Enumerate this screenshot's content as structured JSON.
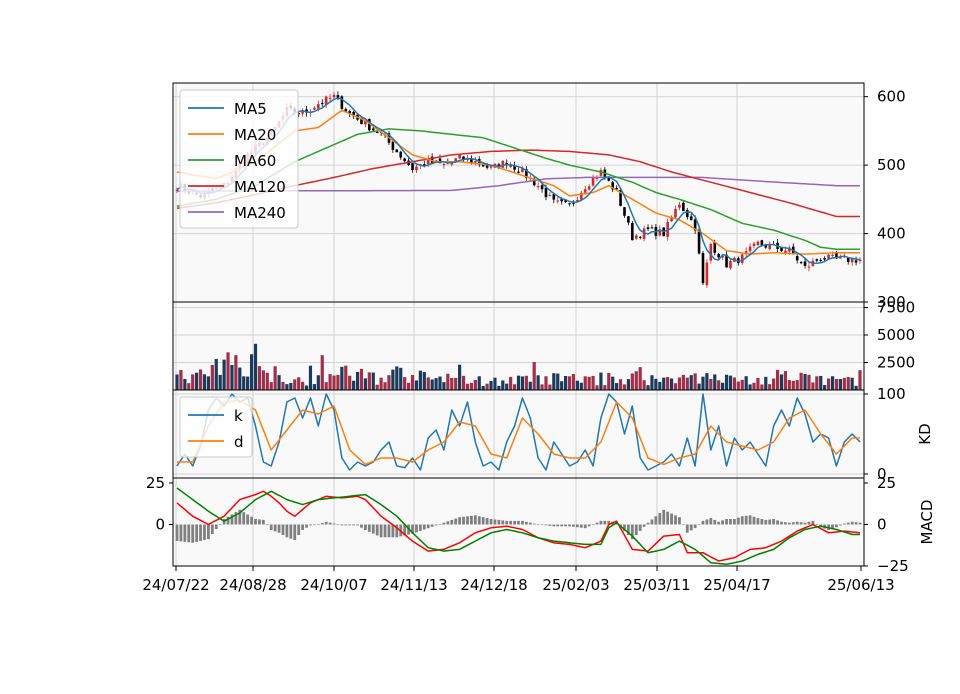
{
  "chart_data": {
    "type": "candlestick",
    "x_tick_labels": [
      "24/07/22",
      "24/08/28",
      "24/10/07",
      "24/11/13",
      "24/12/18",
      "25/02/03",
      "25/03/11",
      "25/04/17",
      "25/06/13"
    ],
    "colors": {
      "ma5": "#1f77b4",
      "ma20": "#ff7f0e",
      "ma60": "#2ca02c",
      "ma120": "#d62728",
      "ma240": "#9467bd",
      "up": "#d62728",
      "down": "#000000",
      "vol_up": "#a0304a",
      "vol_down": "#1b3a5c",
      "macd_line": "#ff0000",
      "signal_line": "#008000",
      "histogram": "#808080",
      "k": "#1f77b4",
      "d": "#ff7f0e",
      "panel_bg": "#f9f9f9",
      "grid": "#d3d3d3"
    },
    "price_panel": {
      "ylim": [
        300,
        620
      ],
      "y_ticks": [
        "600",
        "500",
        "400",
        "300"
      ],
      "legend": [
        "MA5",
        "MA20",
        "MA60",
        "MA120",
        "MA240"
      ],
      "legend_position": "upper-left",
      "close_anchors": [
        [
          0,
          470
        ],
        [
          6,
          455
        ],
        [
          12,
          470
        ],
        [
          18,
          515
        ],
        [
          24,
          545
        ],
        [
          28,
          580
        ],
        [
          32,
          575
        ],
        [
          36,
          590
        ],
        [
          40,
          600
        ],
        [
          44,
          575
        ],
        [
          48,
          560
        ],
        [
          52,
          545
        ],
        [
          56,
          520
        ],
        [
          60,
          495
        ],
        [
          64,
          505
        ],
        [
          68,
          500
        ],
        [
          72,
          510
        ],
        [
          76,
          505
        ],
        [
          80,
          495
        ],
        [
          84,
          505
        ],
        [
          88,
          490
        ],
        [
          92,
          470
        ],
        [
          96,
          445
        ],
        [
          100,
          440
        ],
        [
          104,
          470
        ],
        [
          108,
          490
        ],
        [
          112,
          460
        ],
        [
          116,
          395
        ],
        [
          120,
          405
        ],
        [
          124,
          400
        ],
        [
          128,
          445
        ],
        [
          132,
          410
        ],
        [
          134,
          325
        ],
        [
          136,
          385
        ],
        [
          140,
          355
        ],
        [
          144,
          365
        ],
        [
          148,
          385
        ],
        [
          152,
          380
        ],
        [
          156,
          375
        ],
        [
          160,
          350
        ],
        [
          164,
          365
        ],
        [
          168,
          362
        ]
      ],
      "ma20_anchors": [
        [
          0,
          490
        ],
        [
          10,
          480
        ],
        [
          20,
          505
        ],
        [
          30,
          550
        ],
        [
          36,
          555
        ],
        [
          42,
          580
        ],
        [
          48,
          565
        ],
        [
          54,
          540
        ],
        [
          60,
          515
        ],
        [
          66,
          505
        ],
        [
          72,
          505
        ],
        [
          80,
          500
        ],
        [
          88,
          485
        ],
        [
          96,
          470
        ],
        [
          100,
          455
        ],
        [
          106,
          460
        ],
        [
          110,
          470
        ],
        [
          116,
          450
        ],
        [
          122,
          430
        ],
        [
          128,
          420
        ],
        [
          134,
          400
        ],
        [
          140,
          375
        ],
        [
          146,
          370
        ],
        [
          152,
          372
        ],
        [
          160,
          370
        ],
        [
          168,
          372
        ]
      ],
      "ma60_anchors": [
        [
          0,
          440
        ],
        [
          10,
          450
        ],
        [
          20,
          470
        ],
        [
          30,
          505
        ],
        [
          38,
          525
        ],
        [
          46,
          545
        ],
        [
          54,
          553
        ],
        [
          62,
          550
        ],
        [
          70,
          545
        ],
        [
          78,
          540
        ],
        [
          86,
          525
        ],
        [
          94,
          510
        ],
        [
          100,
          500
        ],
        [
          108,
          490
        ],
        [
          116,
          475
        ],
        [
          122,
          460
        ],
        [
          128,
          450
        ],
        [
          136,
          435
        ],
        [
          144,
          415
        ],
        [
          152,
          405
        ],
        [
          160,
          390
        ],
        [
          164,
          380
        ],
        [
          168,
          377
        ]
      ],
      "ma120_anchors": [
        [
          0,
          437
        ],
        [
          10,
          445
        ],
        [
          20,
          457
        ],
        [
          30,
          470
        ],
        [
          40,
          482
        ],
        [
          50,
          495
        ],
        [
          60,
          505
        ],
        [
          70,
          515
        ],
        [
          80,
          520
        ],
        [
          90,
          522
        ],
        [
          100,
          520
        ],
        [
          110,
          515
        ],
        [
          118,
          505
        ],
        [
          126,
          490
        ],
        [
          136,
          475
        ],
        [
          146,
          460
        ],
        [
          156,
          445
        ],
        [
          168,
          425
        ]
      ],
      "ma240_anchors": [
        [
          0,
          462
        ],
        [
          70,
          463
        ],
        [
          82,
          470
        ],
        [
          94,
          480
        ],
        [
          104,
          482
        ],
        [
          134,
          482
        ],
        [
          150,
          476
        ],
        [
          168,
          470
        ]
      ]
    },
    "volume_panel": {
      "ylim": [
        0,
        8000
      ],
      "y_ticks": [
        "7500",
        "5000",
        "2500"
      ],
      "level_anchors": [
        [
          0,
          1000
        ],
        [
          8,
          1400
        ],
        [
          12,
          2200
        ],
        [
          20,
          3200
        ],
        [
          22,
          2000
        ],
        [
          30,
          900
        ],
        [
          36,
          1100
        ],
        [
          44,
          1500
        ],
        [
          52,
          1100
        ],
        [
          56,
          1500
        ],
        [
          64,
          1000
        ],
        [
          72,
          900
        ],
        [
          80,
          800
        ],
        [
          90,
          900
        ],
        [
          96,
          1000
        ],
        [
          110,
          1000
        ],
        [
          116,
          1200
        ],
        [
          124,
          900
        ],
        [
          132,
          1300
        ],
        [
          136,
          1000
        ],
        [
          148,
          900
        ],
        [
          160,
          1000
        ],
        [
          168,
          900
        ]
      ]
    },
    "kd_panel": {
      "ylim": [
        0,
        100
      ],
      "y_ticks": [
        "100",
        "0"
      ],
      "ylabel": "KD",
      "legend": [
        "k",
        "d"
      ],
      "legend_position": "upper-left",
      "k_anchors": [
        [
          0,
          10
        ],
        [
          2,
          25
        ],
        [
          4,
          10
        ],
        [
          6,
          35
        ],
        [
          8,
          80
        ],
        [
          10,
          95
        ],
        [
          12,
          85
        ],
        [
          14,
          100
        ],
        [
          16,
          90
        ],
        [
          18,
          95
        ],
        [
          20,
          60
        ],
        [
          22,
          15
        ],
        [
          24,
          10
        ],
        [
          26,
          40
        ],
        [
          28,
          90
        ],
        [
          30,
          95
        ],
        [
          32,
          70
        ],
        [
          34,
          95
        ],
        [
          36,
          60
        ],
        [
          38,
          100
        ],
        [
          40,
          80
        ],
        [
          42,
          20
        ],
        [
          44,
          5
        ],
        [
          46,
          15
        ],
        [
          48,
          10
        ],
        [
          50,
          15
        ],
        [
          52,
          30
        ],
        [
          54,
          40
        ],
        [
          56,
          10
        ],
        [
          58,
          8
        ],
        [
          60,
          20
        ],
        [
          62,
          5
        ],
        [
          64,
          45
        ],
        [
          66,
          55
        ],
        [
          68,
          30
        ],
        [
          70,
          80
        ],
        [
          72,
          60
        ],
        [
          74,
          90
        ],
        [
          76,
          40
        ],
        [
          78,
          10
        ],
        [
          80,
          15
        ],
        [
          82,
          5
        ],
        [
          84,
          40
        ],
        [
          86,
          60
        ],
        [
          88,
          95
        ],
        [
          90,
          70
        ],
        [
          92,
          20
        ],
        [
          94,
          5
        ],
        [
          96,
          40
        ],
        [
          98,
          25
        ],
        [
          100,
          10
        ],
        [
          102,
          15
        ],
        [
          104,
          30
        ],
        [
          106,
          10
        ],
        [
          108,
          70
        ],
        [
          110,
          100
        ],
        [
          112,
          90
        ],
        [
          114,
          50
        ],
        [
          116,
          85
        ],
        [
          118,
          20
        ],
        [
          120,
          5
        ],
        [
          122,
          10
        ],
        [
          124,
          15
        ],
        [
          126,
          25
        ],
        [
          128,
          10
        ],
        [
          130,
          45
        ],
        [
          132,
          10
        ],
        [
          134,
          100
        ],
        [
          136,
          30
        ],
        [
          138,
          60
        ],
        [
          140,
          10
        ],
        [
          142,
          45
        ],
        [
          144,
          30
        ],
        [
          146,
          40
        ],
        [
          148,
          25
        ],
        [
          150,
          10
        ],
        [
          152,
          60
        ],
        [
          154,
          80
        ],
        [
          156,
          60
        ],
        [
          158,
          95
        ],
        [
          160,
          75
        ],
        [
          162,
          40
        ],
        [
          164,
          50
        ],
        [
          166,
          45
        ],
        [
          168,
          10
        ],
        [
          170,
          40
        ],
        [
          172,
          50
        ],
        [
          174,
          40
        ]
      ],
      "d_anchors": [
        [
          0,
          15
        ],
        [
          4,
          15
        ],
        [
          8,
          60
        ],
        [
          12,
          90
        ],
        [
          16,
          92
        ],
        [
          20,
          80
        ],
        [
          24,
          30
        ],
        [
          28,
          55
        ],
        [
          32,
          80
        ],
        [
          36,
          75
        ],
        [
          40,
          85
        ],
        [
          44,
          30
        ],
        [
          48,
          12
        ],
        [
          52,
          20
        ],
        [
          56,
          20
        ],
        [
          60,
          15
        ],
        [
          64,
          30
        ],
        [
          68,
          40
        ],
        [
          72,
          65
        ],
        [
          76,
          60
        ],
        [
          80,
          25
        ],
        [
          84,
          20
        ],
        [
          88,
          70
        ],
        [
          92,
          50
        ],
        [
          96,
          25
        ],
        [
          100,
          20
        ],
        [
          104,
          20
        ],
        [
          108,
          40
        ],
        [
          112,
          90
        ],
        [
          116,
          70
        ],
        [
          120,
          20
        ],
        [
          124,
          12
        ],
        [
          128,
          20
        ],
        [
          132,
          25
        ],
        [
          136,
          60
        ],
        [
          140,
          40
        ],
        [
          144,
          35
        ],
        [
          148,
          30
        ],
        [
          152,
          40
        ],
        [
          156,
          70
        ],
        [
          160,
          80
        ],
        [
          164,
          50
        ],
        [
          168,
          25
        ],
        [
          172,
          45
        ],
        [
          174,
          45
        ]
      ]
    },
    "macd_panel": {
      "ylim": [
        -25,
        28
      ],
      "y_ticks_right": [
        "25",
        "0",
        "−25"
      ],
      "y_ticks_left": [
        "25",
        "0"
      ],
      "ylabel": "MACD",
      "macd_anchors": [
        [
          0,
          13
        ],
        [
          4,
          5
        ],
        [
          8,
          0
        ],
        [
          12,
          5
        ],
        [
          16,
          15
        ],
        [
          20,
          18
        ],
        [
          22,
          20
        ],
        [
          24,
          17
        ],
        [
          26,
          13
        ],
        [
          28,
          8
        ],
        [
          30,
          5
        ],
        [
          34,
          13
        ],
        [
          38,
          17
        ],
        [
          42,
          16
        ],
        [
          46,
          17
        ],
        [
          48,
          15
        ],
        [
          52,
          5
        ],
        [
          56,
          -2
        ],
        [
          60,
          -10
        ],
        [
          64,
          -16
        ],
        [
          68,
          -15
        ],
        [
          72,
          -11
        ],
        [
          76,
          -5
        ],
        [
          80,
          -2
        ],
        [
          84,
          -1
        ],
        [
          88,
          -3
        ],
        [
          92,
          -8
        ],
        [
          96,
          -11
        ],
        [
          100,
          -12
        ],
        [
          104,
          -14
        ],
        [
          108,
          -10
        ],
        [
          110,
          0
        ],
        [
          112,
          2
        ],
        [
          116,
          -15
        ],
        [
          120,
          -16
        ],
        [
          124,
          -7
        ],
        [
          128,
          -6
        ],
        [
          130,
          -17
        ],
        [
          134,
          -17
        ],
        [
          138,
          -22
        ],
        [
          142,
          -20
        ],
        [
          146,
          -15
        ],
        [
          150,
          -14
        ],
        [
          154,
          -10
        ],
        [
          158,
          -4
        ],
        [
          162,
          0
        ],
        [
          166,
          -5
        ],
        [
          170,
          -4
        ],
        [
          174,
          -5
        ]
      ],
      "signal_anchors": [
        [
          0,
          22
        ],
        [
          4,
          15
        ],
        [
          8,
          8
        ],
        [
          12,
          2
        ],
        [
          16,
          7
        ],
        [
          20,
          15
        ],
        [
          24,
          20
        ],
        [
          28,
          15
        ],
        [
          32,
          12
        ],
        [
          36,
          15
        ],
        [
          40,
          16
        ],
        [
          44,
          17
        ],
        [
          48,
          18
        ],
        [
          52,
          12
        ],
        [
          56,
          5
        ],
        [
          60,
          -5
        ],
        [
          64,
          -14
        ],
        [
          68,
          -16
        ],
        [
          72,
          -15
        ],
        [
          76,
          -10
        ],
        [
          80,
          -5
        ],
        [
          84,
          -3
        ],
        [
          88,
          -5
        ],
        [
          92,
          -8
        ],
        [
          96,
          -10
        ],
        [
          100,
          -11
        ],
        [
          104,
          -12
        ],
        [
          108,
          -12
        ],
        [
          110,
          -2
        ],
        [
          112,
          1
        ],
        [
          116,
          -7
        ],
        [
          120,
          -17
        ],
        [
          124,
          -15
        ],
        [
          128,
          -10
        ],
        [
          132,
          -15
        ],
        [
          136,
          -23
        ],
        [
          140,
          -24
        ],
        [
          144,
          -22
        ],
        [
          148,
          -18
        ],
        [
          152,
          -15
        ],
        [
          156,
          -8
        ],
        [
          160,
          -3
        ],
        [
          164,
          -1
        ],
        [
          168,
          -3
        ],
        [
          172,
          -6
        ],
        [
          174,
          -6
        ]
      ]
    }
  }
}
